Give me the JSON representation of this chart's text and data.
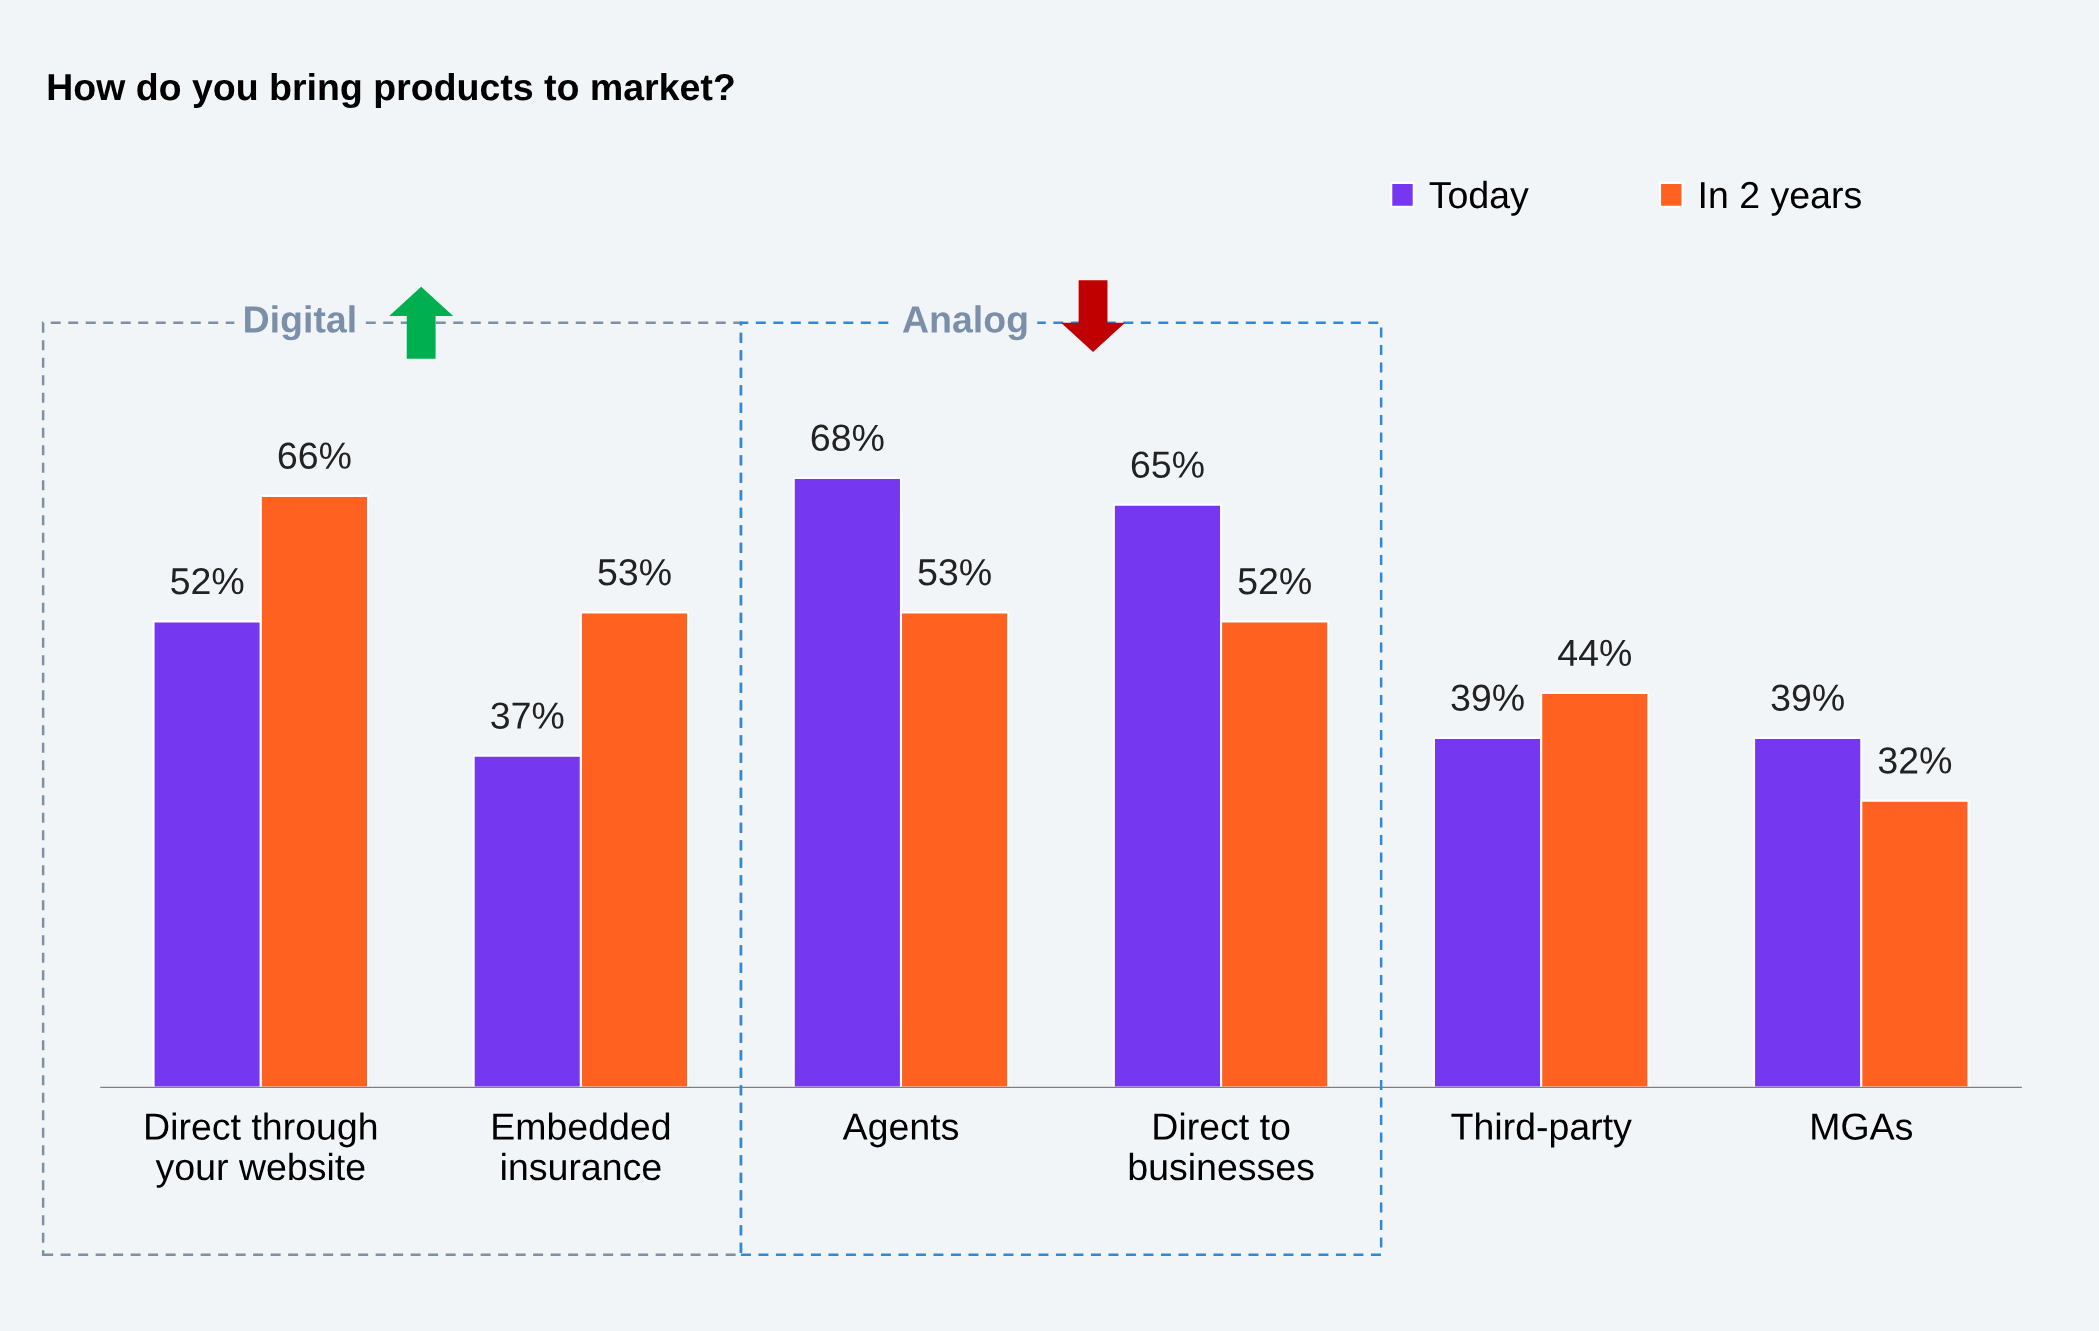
{
  "chart_data": {
    "type": "bar",
    "title": "How do you bring products to market?",
    "categories": [
      "Direct through\nyour website",
      "Embedded\ninsurance",
      "Agents",
      "Direct to\nbusinesses",
      "Third-party",
      "MGAs"
    ],
    "series": [
      {
        "name": "Today",
        "color": "#7538f0",
        "values": [
          52,
          37,
          68,
          65,
          39,
          39
        ],
        "value_labels": [
          "52%",
          "37%",
          "68%",
          "65%",
          "39%",
          "39%"
        ]
      },
      {
        "name": "In 2 years",
        "color": "#ff6120",
        "values": [
          66,
          53,
          53,
          52,
          44,
          32
        ],
        "value_labels": [
          "66%",
          "53%",
          "53%",
          "52%",
          "44%",
          "32%"
        ]
      }
    ],
    "annotations": [
      "Digital",
      "Analog"
    ],
    "grid": false,
    "legend": "top right"
  }
}
